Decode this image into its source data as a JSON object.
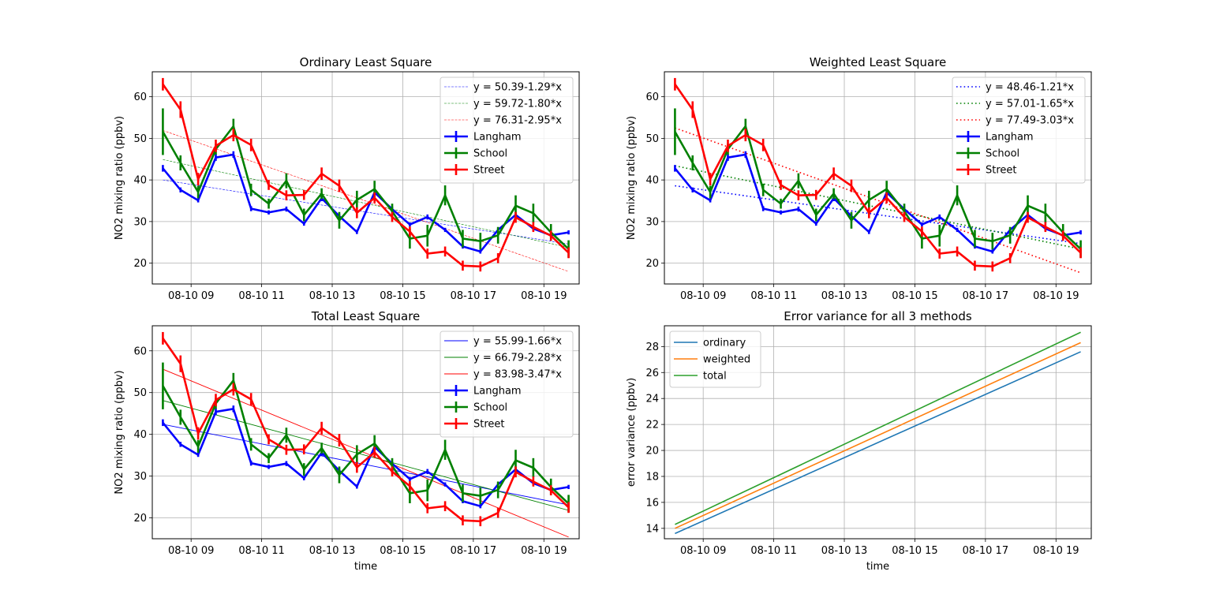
{
  "figure": {
    "x_tick_labels": [
      "08-10 09",
      "08-10 11",
      "08-10 13",
      "08-10 15",
      "08-10 17",
      "08-10 19"
    ],
    "x_tick_hours": [
      9,
      11,
      13,
      15,
      17,
      19
    ]
  },
  "chart_data": [
    {
      "type": "line",
      "title": "Ordinary Least Square",
      "xlabel": "",
      "ylabel": "NO2 mixing ratio (ppbv)",
      "ylim": [
        15,
        66
      ],
      "yticks": [
        20,
        30,
        40,
        50,
        60
      ],
      "grid": true,
      "legend": "top-right",
      "fit_style": "dashed-thin",
      "fits": [
        {
          "label": "y = 50.39-1.29*x",
          "color": "#0000ff",
          "y_start": 40.0,
          "y_end": 24.6
        },
        {
          "label": "y = 59.72-1.80*x",
          "color": "#008000",
          "y_start": 44.9,
          "y_end": 23.8
        },
        {
          "label": "y = 76.31-2.95*x",
          "color": "#ff0000",
          "y_start": 51.9,
          "y_end": 18.0
        }
      ],
      "series_ref": "observations"
    },
    {
      "type": "line",
      "title": "Weighted Least Square",
      "xlabel": "",
      "ylabel": "NO2 mixing ratio (ppbv)",
      "ylim": [
        15,
        66
      ],
      "yticks": [
        20,
        30,
        40,
        50,
        60
      ],
      "grid": true,
      "legend": "top-right",
      "fit_style": "dotted",
      "fits": [
        {
          "label": "y = 48.46-1.21*x",
          "color": "#0000ff",
          "y_start": 38.6,
          "y_end": 24.7
        },
        {
          "label": "y = 57.01-1.65*x",
          "color": "#008000",
          "y_start": 43.4,
          "y_end": 23.4
        },
        {
          "label": "y = 77.49-3.03*x",
          "color": "#ff0000",
          "y_start": 52.5,
          "y_end": 17.7
        }
      ],
      "series_ref": "observations"
    },
    {
      "type": "line",
      "title": "Total Least Square",
      "xlabel": "time",
      "ylabel": "NO2 mixing ratio (ppbv)",
      "ylim": [
        15,
        66
      ],
      "yticks": [
        20,
        30,
        40,
        50,
        60
      ],
      "grid": true,
      "legend": "top-right",
      "fit_style": "solid-thin",
      "fits": [
        {
          "label": "y = 55.99-1.66*x",
          "color": "#0000ff",
          "y_start": 42.4,
          "y_end": 23.1
        },
        {
          "label": "y = 66.79-2.28*x",
          "color": "#008000",
          "y_start": 48.1,
          "y_end": 21.8
        },
        {
          "label": "y = 83.98-3.47*x",
          "color": "#ff0000",
          "y_start": 55.6,
          "y_end": 15.4
        }
      ],
      "series_ref": "observations"
    },
    {
      "type": "line",
      "title": "Error variance for all 3 methods",
      "xlabel": "time",
      "ylabel": "error variance (ppbv)",
      "ylim": [
        13.2,
        29.6
      ],
      "yticks": [
        14,
        16,
        18,
        20,
        22,
        24,
        26,
        28
      ],
      "grid": true,
      "legend": "top-left",
      "series": [
        {
          "name": "ordinary",
          "color": "#1f77b4",
          "y_start": 13.6,
          "y_end": 27.6
        },
        {
          "name": "weighted",
          "color": "#ff7f0e",
          "y_start": 14.0,
          "y_end": 28.3
        },
        {
          "name": "total",
          "color": "#2ca02c",
          "y_start": 14.3,
          "y_end": 29.1
        }
      ]
    }
  ],
  "observations": {
    "x_hours": [
      8.2,
      8.7,
      9.2,
      9.7,
      10.2,
      10.7,
      11.2,
      11.7,
      12.2,
      12.7,
      13.2,
      13.7,
      14.2,
      14.7,
      15.2,
      15.7,
      16.2,
      16.7,
      17.2,
      17.7,
      18.2,
      18.7,
      19.2,
      19.7
    ],
    "series": [
      {
        "name": "Langham",
        "color": "#0000ff",
        "values": [
          42.8,
          37.6,
          35.1,
          45.4,
          46.1,
          33.1,
          32.2,
          33.0,
          29.5,
          35.6,
          31.3,
          27.5,
          37.0,
          33.0,
          29.3,
          31.1,
          28.0,
          24.0,
          22.8,
          28.0,
          31.6,
          28.3,
          26.7,
          27.4
        ],
        "errors": [
          0.8,
          0.6,
          0.5,
          0.8,
          0.8,
          0.6,
          0.5,
          0.6,
          0.5,
          0.7,
          0.6,
          0.5,
          0.7,
          0.6,
          0.5,
          0.6,
          0.5,
          0.5,
          0.5,
          0.5,
          0.6,
          0.5,
          0.5,
          0.5
        ]
      },
      {
        "name": "School",
        "color": "#008000",
        "values": [
          51.6,
          44.1,
          37.1,
          47.4,
          52.9,
          37.6,
          34.3,
          39.8,
          31.6,
          36.7,
          30.3,
          35.2,
          37.8,
          32.5,
          25.9,
          26.6,
          36.3,
          25.9,
          25.3,
          26.7,
          33.8,
          32.0,
          27.4,
          23.4
        ],
        "errors": [
          5.6,
          1.8,
          1.5,
          1.3,
          1.8,
          1.5,
          1.2,
          1.8,
          1.5,
          1.3,
          2.0,
          2.2,
          2.0,
          1.8,
          2.4,
          2.6,
          2.4,
          2.1,
          2.0,
          2.0,
          2.5,
          2.3,
          2.0,
          2.1
        ]
      },
      {
        "name": "Street",
        "color": "#ff0000",
        "values": [
          63.0,
          56.9,
          40.2,
          48.2,
          50.8,
          48.4,
          38.8,
          36.3,
          36.4,
          41.5,
          38.6,
          32.1,
          35.7,
          31.1,
          27.6,
          22.3,
          22.8,
          19.4,
          19.2,
          21.2,
          31.0,
          28.7,
          26.6,
          22.5
        ],
        "errors": [
          1.5,
          2.0,
          1.5,
          1.5,
          1.5,
          1.5,
          1.2,
          1.2,
          1.2,
          1.5,
          1.5,
          1.3,
          1.3,
          1.2,
          1.2,
          1.2,
          1.2,
          1.2,
          1.2,
          1.2,
          1.3,
          1.2,
          1.2,
          1.3
        ]
      }
    ]
  }
}
